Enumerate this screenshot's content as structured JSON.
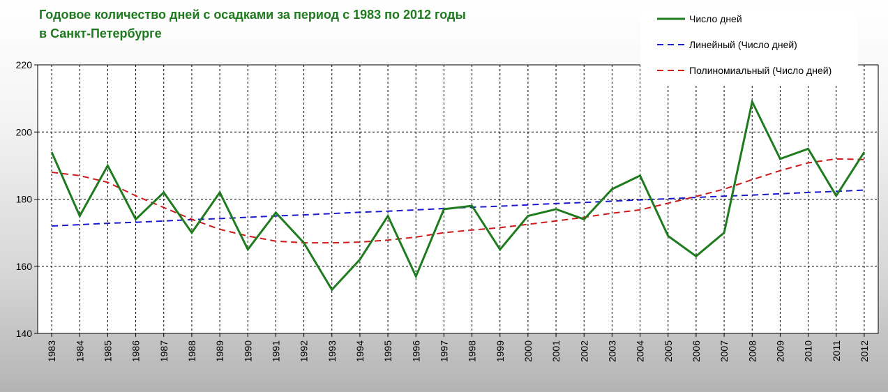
{
  "title": {
    "line1": "Годовое количество дней с осадками за период с 1983 по 2012 годы",
    "line2": "в Санкт-Петербурге"
  },
  "legend": {
    "actual": "Число дней",
    "linear": "Линейный (Число дней)",
    "poly": "Полиномиальный (Число дней)"
  },
  "colors": {
    "actual": "#1e7b1e",
    "linear": "#1a1acc",
    "poly": "#cc1a1a",
    "title": "#1f7a1f"
  },
  "chart_data": {
    "type": "line",
    "categories": [
      "1983",
      "1984",
      "1985",
      "1986",
      "1987",
      "1988",
      "1989",
      "1990",
      "1991",
      "1992",
      "1993",
      "1994",
      "1995",
      "1996",
      "1997",
      "1998",
      "1999",
      "2000",
      "2001",
      "2002",
      "2003",
      "2004",
      "2005",
      "2006",
      "2007",
      "2008",
      "2009",
      "2010",
      "2011",
      "2012"
    ],
    "ylim": [
      140,
      220
    ],
    "yticks": [
      "140",
      "160",
      "180",
      "200",
      "220"
    ],
    "grid": true,
    "legend_position": "top-right",
    "series": [
      {
        "name": "Число дней",
        "style": "solid",
        "values": [
          194,
          175,
          190,
          174,
          182,
          170,
          182,
          165,
          176,
          167,
          153,
          162,
          175,
          157,
          177,
          178,
          165,
          175,
          177,
          174,
          183,
          187,
          169,
          163,
          170,
          209,
          192,
          195,
          181,
          194
        ]
      },
      {
        "name": "Линейный (Число дней)",
        "style": "dashed",
        "values": [
          172,
          172.4,
          172.8,
          173.1,
          173.5,
          173.9,
          174.2,
          174.6,
          175,
          175.3,
          175.7,
          176.1,
          176.4,
          176.8,
          177.2,
          177.6,
          177.9,
          178.3,
          178.7,
          179,
          179.4,
          179.8,
          180.1,
          180.5,
          180.9,
          181.2,
          181.6,
          182,
          182.3,
          182.7
        ]
      },
      {
        "name": "Полиномиальный (Число дней)",
        "style": "dashed",
        "values": [
          188,
          187,
          185,
          181,
          177.5,
          174,
          171,
          169,
          167.5,
          167,
          167,
          167.2,
          167.8,
          168.7,
          170,
          170.8,
          171.5,
          172.5,
          173.5,
          174.6,
          175.8,
          176.8,
          178.8,
          180.8,
          183,
          185.8,
          188.5,
          190.8,
          192,
          191.8
        ]
      }
    ]
  }
}
